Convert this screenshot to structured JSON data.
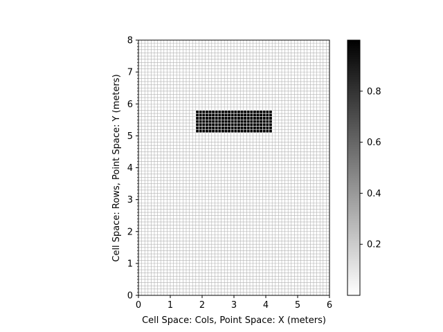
{
  "chart_data": {
    "type": "heatmap",
    "xlabel": "Cell Space: Cols, Point Space: X (meters)",
    "ylabel": "Cell Space: Rows, Point Space: Y (meters)",
    "xlim": [
      0,
      6
    ],
    "ylim": [
      0,
      8
    ],
    "xticks": [
      "0",
      "1",
      "2",
      "3",
      "4",
      "5",
      "6"
    ],
    "yticks": [
      "0",
      "1",
      "2",
      "3",
      "4",
      "5",
      "6",
      "7",
      "8"
    ],
    "cell_size": 0.1,
    "grid": true,
    "background_value": 0,
    "filled_region": {
      "x": [
        1.8,
        4.2
      ],
      "y": [
        5.1,
        5.8
      ],
      "value": 1
    },
    "colormap": "gray_r",
    "colorbar": {
      "range": [
        0,
        1
      ],
      "ticks": [
        "0.2",
        "0.4",
        "0.6",
        "0.8"
      ],
      "tick_values": [
        0.2,
        0.4,
        0.6,
        0.8
      ]
    }
  }
}
